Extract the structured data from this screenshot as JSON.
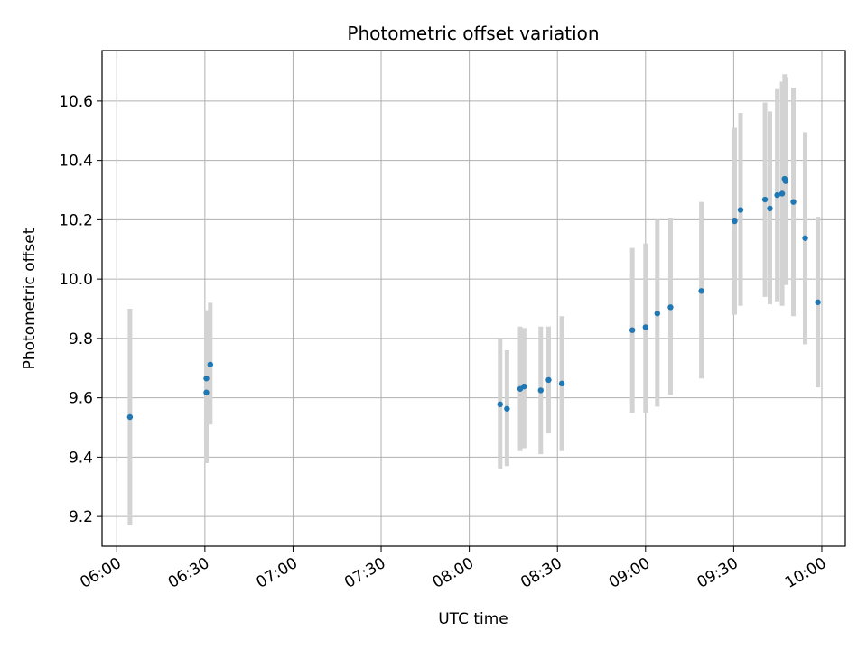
{
  "chart_data": {
    "type": "scatter",
    "title": "Photometric offset variation",
    "xlabel": "UTC time",
    "ylabel": "Photometric offset",
    "xlim": [
      "05:55",
      "10:08"
    ],
    "ylim": [
      9.1,
      10.77
    ],
    "grid": true,
    "x_ticks": [
      "06:00",
      "06:30",
      "07:00",
      "07:30",
      "08:00",
      "08:30",
      "09:00",
      "09:30",
      "10:00"
    ],
    "y_ticks": [
      "9.2",
      "9.4",
      "9.6",
      "9.8",
      "10.0",
      "10.2",
      "10.4",
      "10.6"
    ],
    "marker_color": "#1f77b4",
    "errorbar_color": "#d3d3d3",
    "points": [
      {
        "x": "06:04:30",
        "y": 9.535,
        "lo": 9.17,
        "hi": 9.9
      },
      {
        "x": "06:30:30",
        "y": 9.665,
        "lo": 9.45,
        "hi": 9.895
      },
      {
        "x": "06:30:30",
        "y": 9.618,
        "lo": 9.38,
        "hi": 9.85
      },
      {
        "x": "06:31:50",
        "y": 9.712,
        "lo": 9.51,
        "hi": 9.92
      },
      {
        "x": "08:10:30",
        "y": 9.578,
        "lo": 9.36,
        "hi": 9.8
      },
      {
        "x": "08:12:50",
        "y": 9.563,
        "lo": 9.37,
        "hi": 9.76
      },
      {
        "x": "08:17:20",
        "y": 9.63,
        "lo": 9.42,
        "hi": 9.84
      },
      {
        "x": "08:18:40",
        "y": 9.638,
        "lo": 9.43,
        "hi": 9.835
      },
      {
        "x": "08:24:20",
        "y": 9.625,
        "lo": 9.41,
        "hi": 9.84
      },
      {
        "x": "08:27:00",
        "y": 9.66,
        "lo": 9.48,
        "hi": 9.84
      },
      {
        "x": "08:31:30",
        "y": 9.648,
        "lo": 9.42,
        "hi": 9.875
      },
      {
        "x": "08:55:30",
        "y": 9.828,
        "lo": 9.55,
        "hi": 10.105
      },
      {
        "x": "09:00:00",
        "y": 9.838,
        "lo": 9.55,
        "hi": 10.12
      },
      {
        "x": "09:04:00",
        "y": 9.884,
        "lo": 9.57,
        "hi": 10.2
      },
      {
        "x": "09:08:30",
        "y": 9.905,
        "lo": 9.61,
        "hi": 10.205
      },
      {
        "x": "09:19:00",
        "y": 9.96,
        "lo": 9.665,
        "hi": 10.26
      },
      {
        "x": "09:30:20",
        "y": 10.195,
        "lo": 9.88,
        "hi": 10.51
      },
      {
        "x": "09:32:20",
        "y": 10.233,
        "lo": 9.91,
        "hi": 10.56
      },
      {
        "x": "09:40:40",
        "y": 10.268,
        "lo": 9.94,
        "hi": 10.595
      },
      {
        "x": "09:42:20",
        "y": 10.238,
        "lo": 9.915,
        "hi": 10.565
      },
      {
        "x": "09:44:50",
        "y": 10.283,
        "lo": 9.925,
        "hi": 10.64
      },
      {
        "x": "09:46:30",
        "y": 10.288,
        "lo": 9.91,
        "hi": 10.665
      },
      {
        "x": "09:47:20",
        "y": 10.338,
        "lo": 9.985,
        "hi": 10.69
      },
      {
        "x": "09:47:40",
        "y": 10.33,
        "lo": 9.98,
        "hi": 10.68
      },
      {
        "x": "09:50:20",
        "y": 10.26,
        "lo": 9.875,
        "hi": 10.645
      },
      {
        "x": "09:54:20",
        "y": 10.138,
        "lo": 9.78,
        "hi": 10.495
      },
      {
        "x": "09:58:40",
        "y": 9.922,
        "lo": 9.635,
        "hi": 10.21
      }
    ]
  }
}
